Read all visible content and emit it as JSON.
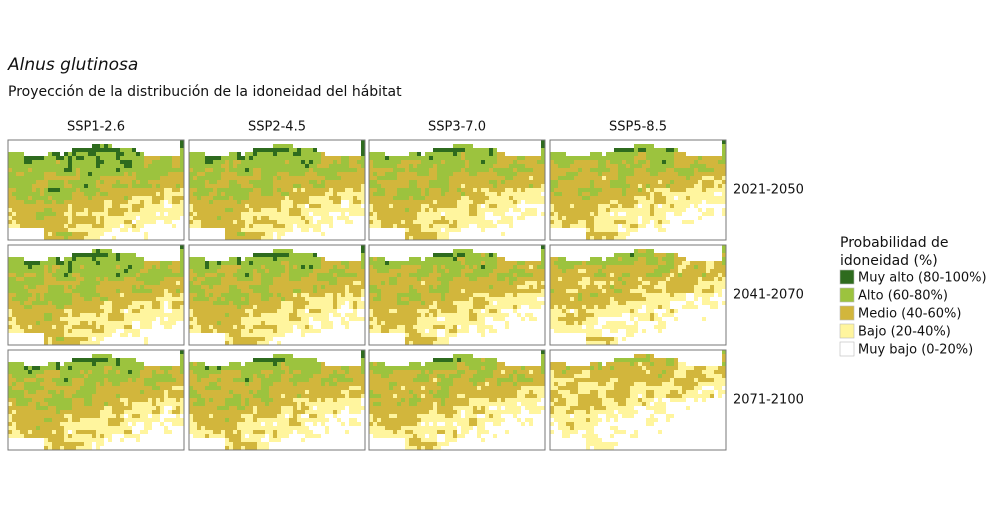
{
  "header": {
    "title": "Alnus glutinosa",
    "subtitle": "Proyección de la distribución de la idoneidad del hábitat"
  },
  "columns": [
    "SSP1-2.6",
    "SSP2-4.5",
    "SSP3-7.0",
    "SSP5-8.5"
  ],
  "rows": [
    "2021-2050",
    "2041-2070",
    "2071-2100"
  ],
  "legend": {
    "title": [
      "Probabilidad de",
      "idoneidad (%)"
    ],
    "items": [
      {
        "label": "Muy alto (80-100%)",
        "color": "#2e6b1e"
      },
      {
        "label": "Alto (60-80%)",
        "color": "#9cc33e"
      },
      {
        "label": "Medio (40-60%)",
        "color": "#d2b63c"
      },
      {
        "label": "Bajo (20-40%)",
        "color": "#fff59e"
      },
      {
        "label": "Muy bajo (0-20%)",
        "color": "#ffffff"
      }
    ]
  }
}
